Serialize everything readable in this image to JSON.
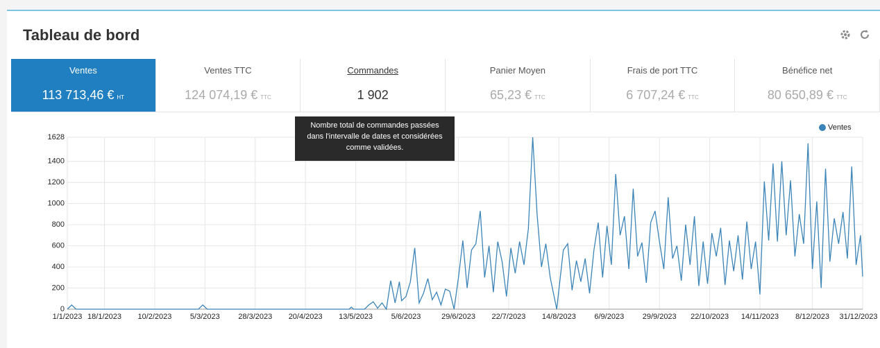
{
  "header": {
    "title": "Tableau de bord"
  },
  "tabs": [
    {
      "label": "Ventes",
      "value": "113 713,46 €",
      "unit": "HT"
    },
    {
      "label": "Ventes TTC",
      "value": "124 074,19 €",
      "unit": "TTC"
    },
    {
      "label": "Commandes",
      "value": "1 902"
    },
    {
      "label": "Panier Moyen",
      "value": "65,23 €",
      "unit": "TTC"
    },
    {
      "label": "Frais de port TTC",
      "value": "6 707,24 €",
      "unit": "TTC"
    },
    {
      "label": "Bénéfice net",
      "value": "80 650,89 €",
      "unit": "TTC"
    }
  ],
  "selected_tab": 0,
  "hovered_tab": 2,
  "tooltip": "Nombre total de commandes passées dans l'intervalle de dates et considérées comme validées.",
  "chart_data": {
    "type": "line",
    "legend": "top-right",
    "grid": true,
    "x": [
      "1/1/2023",
      "3/1/2023",
      "5/1/2023",
      "2/3/2023",
      "4/3/2023",
      "6/3/2023",
      "10/5/2023",
      "11/5/2023",
      "12/5/2023",
      "17/5/2023",
      "19/5/2023",
      "21/5/2023",
      "23/5/2023",
      "25/5/2023",
      "27/5/2023",
      "29/5/2023",
      "31/5/2023",
      "2/6/2023",
      "3/6/2023",
      "5/6/2023",
      "7/6/2023",
      "9/6/2023",
      "11/6/2023",
      "13/6/2023",
      "15/6/2023",
      "17/6/2023",
      "19/6/2023",
      "21/6/2023",
      "23/6/2023",
      "25/6/2023",
      "27/6/2023",
      "29/6/2023",
      "1/7/2023",
      "3/7/2023",
      "5/7/2023",
      "7/7/2023",
      "9/7/2023",
      "11/7/2023",
      "13/7/2023",
      "15/7/2023",
      "17/7/2023",
      "19/7/2023",
      "21/7/2023",
      "23/7/2023",
      "25/7/2023",
      "27/7/2023",
      "29/7/2023",
      "31/7/2023",
      "2/8/2023",
      "4/8/2023",
      "6/8/2023",
      "8/8/2023",
      "10/8/2023",
      "13/8/2023",
      "16/8/2023",
      "18/8/2023",
      "20/8/2023",
      "22/8/2023",
      "24/8/2023",
      "26/8/2023",
      "28/8/2023",
      "30/8/2023",
      "1/9/2023",
      "3/9/2023",
      "5/9/2023",
      "7/9/2023",
      "9/9/2023",
      "11/9/2023",
      "13/9/2023",
      "15/9/2023",
      "17/9/2023",
      "19/9/2023",
      "21/9/2023",
      "23/9/2023",
      "25/9/2023",
      "27/9/2023",
      "29/9/2023",
      "1/10/2023",
      "3/10/2023",
      "5/10/2023",
      "7/10/2023",
      "9/10/2023",
      "11/10/2023",
      "13/10/2023",
      "15/10/2023",
      "17/10/2023",
      "19/10/2023",
      "21/10/2023",
      "23/10/2023",
      "25/10/2023",
      "27/10/2023",
      "29/10/2023",
      "31/10/2023",
      "2/11/2023",
      "4/11/2023",
      "6/11/2023",
      "8/11/2023",
      "10/11/2023",
      "12/11/2023",
      "14/11/2023",
      "16/11/2023",
      "18/11/2023",
      "20/11/2023",
      "22/11/2023",
      "24/11/2023",
      "26/11/2023",
      "28/11/2023",
      "30/11/2023",
      "2/12/2023",
      "4/12/2023",
      "6/12/2023",
      "8/12/2023",
      "10/12/2023",
      "12/12/2023",
      "14/12/2023",
      "16/12/2023",
      "18/12/2023",
      "20/12/2023",
      "22/12/2023",
      "24/12/2023",
      "26/12/2023",
      "28/12/2023",
      "30/12/2023",
      "31/12/2023"
    ],
    "series": [
      {
        "name": "Ventes",
        "color": "#3b84b8",
        "values": [
          0,
          40,
          0,
          0,
          40,
          0,
          0,
          20,
          0,
          0,
          40,
          70,
          10,
          60,
          0,
          270,
          60,
          260,
          80,
          120,
          260,
          580,
          60,
          150,
          290,
          90,
          160,
          40,
          190,
          170,
          0,
          300,
          650,
          200,
          560,
          620,
          930,
          300,
          600,
          160,
          640,
          450,
          120,
          580,
          340,
          640,
          420,
          760,
          1628,
          900,
          400,
          620,
          300,
          0,
          560,
          620,
          180,
          460,
          260,
          480,
          150,
          560,
          820,
          300,
          790,
          420,
          1280,
          700,
          880,
          380,
          1140,
          500,
          630,
          250,
          820,
          930,
          640,
          380,
          1060,
          480,
          600,
          270,
          800,
          420,
          880,
          220,
          640,
          240,
          720,
          500,
          770,
          230,
          650,
          360,
          700,
          280,
          830,
          380,
          640,
          140,
          1210,
          650,
          1380,
          640,
          1400,
          700,
          1220,
          500,
          900,
          620,
          1570,
          380,
          1020,
          200,
          1330,
          450,
          860,
          620,
          920,
          480,
          1350,
          420,
          700,
          310
        ]
      }
    ],
    "xlim": [
      "1/1/2023",
      "31/12/2023"
    ],
    "xticks": [
      "1/1/2023",
      "18/1/2023",
      "10/2/2023",
      "5/3/2023",
      "28/3/2023",
      "20/4/2023",
      "13/5/2023",
      "5/6/2023",
      "29/6/2023",
      "22/7/2023",
      "14/8/2023",
      "6/9/2023",
      "29/9/2023",
      "22/10/2023",
      "14/11/2023",
      "8/12/2023",
      "31/12/2023"
    ],
    "ylim": [
      0,
      1628
    ],
    "yticks": [
      0,
      200,
      400,
      600,
      800,
      1000,
      1200,
      1400,
      1628
    ]
  }
}
